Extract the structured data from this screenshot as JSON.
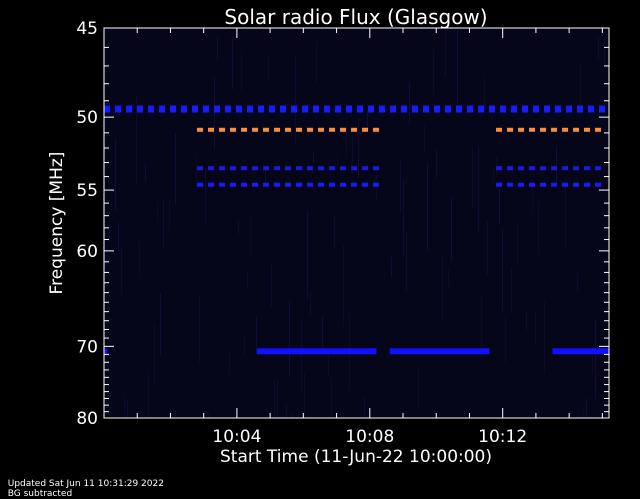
{
  "chart_data": {
    "type": "heatmap",
    "title": "Solar radio Flux (Glasgow)",
    "ylabel": "Frequency [MHz]",
    "xlabel": "Start Time (11-Jun-22 10:00:00)",
    "y_scale": "reciprocal",
    "ylim": [
      45,
      80
    ],
    "xlim_minutes": [
      0,
      15.2
    ],
    "y_ticks": [
      45,
      50,
      55,
      60,
      70,
      80
    ],
    "x_ticks": [
      {
        "minute": 4,
        "label": "10:04"
      },
      {
        "minute": 8,
        "label": "10:08"
      },
      {
        "minute": 12,
        "label": "10:12"
      }
    ],
    "background_color": "#06061a",
    "features": [
      {
        "kind": "dashed",
        "freq": 49.5,
        "color": "#1a1aff",
        "segments": [
          [
            0,
            15.2
          ]
        ]
      },
      {
        "kind": "dashed",
        "freq": 50.8,
        "color": "#ff8c3a",
        "segments": [
          [
            2.8,
            8.4
          ],
          [
            11.8,
            15.2
          ]
        ]
      },
      {
        "kind": "dashed",
        "freq": 53.4,
        "color": "#1a1ae0",
        "segments": [
          [
            2.8,
            8.4
          ],
          [
            11.8,
            15.2
          ]
        ]
      },
      {
        "kind": "dashed",
        "freq": 54.6,
        "color": "#1a1aff",
        "segments": [
          [
            2.8,
            8.4
          ],
          [
            11.8,
            15.2
          ]
        ]
      },
      {
        "kind": "solid",
        "freq": 70.6,
        "color": "#1010ff",
        "segments": [
          [
            0,
            0.1
          ],
          [
            4.6,
            8.2
          ],
          [
            8.6,
            11.6
          ],
          [
            13.5,
            15.2
          ]
        ]
      }
    ]
  },
  "footer": {
    "updated": "Updated Sat Jun 11 10:31:29 2022",
    "bg": "BG subtracted"
  },
  "colors": {
    "axis": "#ffffff",
    "page_background": "#000000"
  }
}
